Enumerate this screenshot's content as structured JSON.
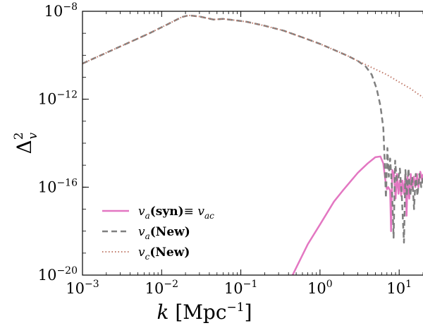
{
  "chart_data": {
    "type": "line",
    "x_scale": "log",
    "y_scale": "log",
    "xlim": [
      0.001,
      20
    ],
    "ylim": [
      1e-20,
      1e-08
    ],
    "grid": false,
    "legend_position": "bottom-left",
    "xlabel": {
      "symbol": "k",
      "unit": "[Mpc",
      "unit_exp": "−1",
      "unit_close": "]"
    },
    "ylabel": {
      "symbol": "Δ",
      "sup": "2",
      "sub": "v"
    },
    "x_ticks": [
      {
        "value": 0.001,
        "base": "10",
        "exp": "−3"
      },
      {
        "value": 0.01,
        "base": "10",
        "exp": "−2"
      },
      {
        "value": 0.1,
        "base": "10",
        "exp": "−1"
      },
      {
        "value": 1,
        "base": "10",
        "exp": "0"
      },
      {
        "value": 10,
        "base": "10",
        "exp": "1"
      }
    ],
    "y_ticks": [
      {
        "value": 1e-20,
        "base": "10",
        "exp": "−20"
      },
      {
        "value": 1e-16,
        "base": "10",
        "exp": "−16"
      },
      {
        "value": 1e-12,
        "base": "10",
        "exp": "−12"
      },
      {
        "value": 1e-08,
        "base": "10",
        "exp": "−8"
      }
    ],
    "series": [
      {
        "name": "v_a(syn) ≡ v_ac",
        "legend_parts": {
          "v": "v",
          "sub": "a",
          "bold": "(syn)",
          "equiv": "≡ ",
          "v2": "v",
          "sub2": "ac"
        },
        "color": "#e377c2",
        "style": "solid",
        "points": [
          [
            0.45,
            1e-20
          ],
          [
            0.7,
            2.5e-19
          ],
          [
            1.0,
            2e-18
          ],
          [
            1.5,
            2.2e-17
          ],
          [
            2.0,
            8e-17
          ],
          [
            3.0,
            4.5e-16
          ],
          [
            4.0,
            1.2e-15
          ],
          [
            5.0,
            2.3e-15
          ],
          [
            5.8,
            2.5e-15
          ],
          [
            6.3,
            1.2e-15
          ],
          [
            6.7,
            2e-16
          ],
          [
            7.0,
            8e-17
          ],
          [
            7.3,
            1e-16
          ],
          [
            7.7,
            7e-17
          ],
          [
            7.9,
            1e-18
          ],
          [
            8.2,
            6e-16
          ],
          [
            8.6,
            4e-16
          ],
          [
            9.0,
            3e-17
          ],
          [
            9.4,
            4e-16
          ],
          [
            9.8,
            5e-17
          ],
          [
            10.2,
            2e-16
          ],
          [
            10.6,
            4e-17
          ],
          [
            11.0,
            2e-16
          ],
          [
            11.5,
            5e-17
          ],
          [
            12.0,
            4e-16
          ],
          [
            12.4,
            5e-18
          ],
          [
            12.8,
            3e-16
          ],
          [
            13.4,
            3e-17
          ],
          [
            14.0,
            4e-16
          ],
          [
            14.6,
            8e-17
          ],
          [
            15.3,
            3e-16
          ],
          [
            16.0,
            1e-16
          ],
          [
            16.8,
            4e-16
          ],
          [
            17.5,
            1e-16
          ],
          [
            18.5,
            5e-16
          ],
          [
            19.5,
            2e-16
          ],
          [
            20,
            4e-16
          ]
        ]
      },
      {
        "name": "v_a(New)",
        "legend_parts": {
          "v": "v",
          "sub": "a",
          "bold": "(New)"
        },
        "color": "#7f7f7f",
        "style": "dashed",
        "points": [
          [
            0.001,
            4.2e-11
          ],
          [
            0.002,
            1.3e-10
          ],
          [
            0.004,
            4e-10
          ],
          [
            0.007,
            1e-09
          ],
          [
            0.012,
            2.6e-09
          ],
          [
            0.018,
            5.5e-09
          ],
          [
            0.022,
            6.5e-09
          ],
          [
            0.03,
            5.8e-09
          ],
          [
            0.045,
            4.2e-09
          ],
          [
            0.06,
            4.5e-09
          ],
          [
            0.08,
            4e-09
          ],
          [
            0.12,
            3.3e-09
          ],
          [
            0.2,
            2.2e-09
          ],
          [
            0.35,
            1.3e-09
          ],
          [
            0.6,
            6.5e-10
          ],
          [
            1.0,
            3.3e-10
          ],
          [
            1.6,
            1.6e-10
          ],
          [
            2.3,
            9e-11
          ],
          [
            3.0,
            5.5e-11
          ],
          [
            3.8,
            3e-11
          ],
          [
            4.5,
            1.3e-11
          ],
          [
            5.2,
            3e-12
          ],
          [
            5.8,
            5e-13
          ],
          [
            6.3,
            5e-14
          ],
          [
            6.6,
            1e-15
          ],
          [
            6.8,
            3.2e-17
          ],
          [
            7.1,
            6e-15
          ],
          [
            7.4,
            3e-16
          ],
          [
            7.7,
            2e-15
          ],
          [
            8.1,
            1e-16
          ],
          [
            8.5,
            5e-19
          ],
          [
            8.9,
            1.6e-15
          ],
          [
            9.3,
            2e-16
          ],
          [
            9.7,
            2e-16
          ],
          [
            10.2,
            7e-16
          ],
          [
            10.8,
            4e-17
          ],
          [
            11.5,
            3e-19
          ],
          [
            12.0,
            6e-16
          ],
          [
            12.5,
            4e-17
          ],
          [
            13.1,
            7e-16
          ],
          [
            13.8,
            4e-17
          ],
          [
            14.6,
            3e-16
          ],
          [
            15.4,
            1e-17
          ],
          [
            16.2,
            4e-16
          ],
          [
            17.0,
            4e-17
          ],
          [
            18.0,
            4e-16
          ],
          [
            19.0,
            1e-16
          ],
          [
            20,
            3e-16
          ]
        ]
      },
      {
        "name": "v_c(New)",
        "legend_parts": {
          "v": "v",
          "sub": "c",
          "bold": "(New)"
        },
        "color": "#c07a6a",
        "style": "dotted",
        "points": [
          [
            0.001,
            4.2e-11
          ],
          [
            0.002,
            1.3e-10
          ],
          [
            0.004,
            4e-10
          ],
          [
            0.007,
            1e-09
          ],
          [
            0.012,
            2.6e-09
          ],
          [
            0.018,
            5.5e-09
          ],
          [
            0.022,
            6.5e-09
          ],
          [
            0.03,
            5.8e-09
          ],
          [
            0.045,
            4.2e-09
          ],
          [
            0.06,
            4.5e-09
          ],
          [
            0.08,
            4e-09
          ],
          [
            0.12,
            3.3e-09
          ],
          [
            0.2,
            2.2e-09
          ],
          [
            0.35,
            1.3e-09
          ],
          [
            0.6,
            6.5e-10
          ],
          [
            1.0,
            3.3e-10
          ],
          [
            1.6,
            1.6e-10
          ],
          [
            2.3,
            9e-11
          ],
          [
            3.0,
            5.5e-11
          ],
          [
            3.8,
            3.7e-11
          ],
          [
            5.0,
            2.3e-11
          ],
          [
            7.0,
            1.3e-11
          ],
          [
            10.0,
            6e-12
          ],
          [
            14.0,
            3e-12
          ],
          [
            20,
            1.2e-12
          ]
        ]
      }
    ]
  }
}
